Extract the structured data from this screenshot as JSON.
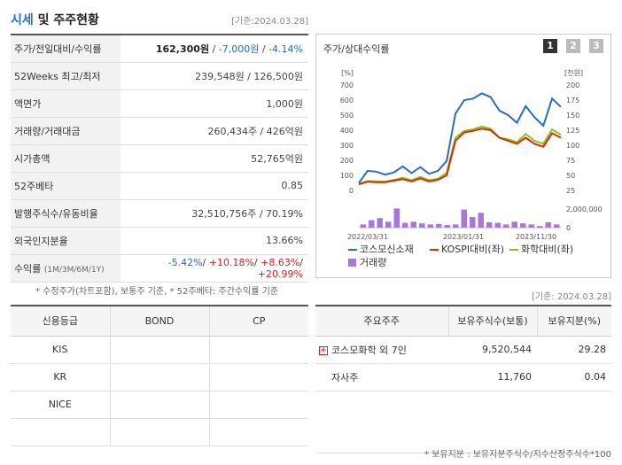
{
  "header": {
    "title_a": "시세",
    "title_b": " 및 주주현황",
    "date": "[기준:2024.03.28]"
  },
  "price_rows": [
    {
      "label": "주가/전일대비/수익률",
      "v1": "162,300원",
      "sep1": " / ",
      "v2": "-7,000원",
      "sep2": " / ",
      "v3": "-4.14%"
    },
    {
      "label": "52Weeks 최고/최저",
      "value": "239,548원 / 126,500원"
    },
    {
      "label": "액면가",
      "value": "1,000원"
    },
    {
      "label": "거래량/거래대금",
      "value": "260,434주 / 426억원"
    },
    {
      "label": "시가총액",
      "value": "52,765억원"
    },
    {
      "label": "52주베타",
      "value": "0.85"
    },
    {
      "label": "발행주식수/유동비율",
      "value": "32,510,756주 / 70.19%"
    },
    {
      "label": "외국인지분율",
      "value": "13.66%"
    },
    {
      "label": "수익률",
      "sub": "(1M/3M/6M/1Y)",
      "r1": "-5.42%",
      "r2": "+10.18%",
      "r3": "+8.63%",
      "r4": "+20.99%"
    }
  ],
  "note1": "* 수정주가(차트포함), 보통주 기준, * 52주베타: 주간수익률 기준",
  "chart_panel": {
    "title": "주가/상대수익률",
    "pages": [
      "1",
      "2",
      "3"
    ]
  },
  "chart_data": {
    "type": "line",
    "x_ticks": [
      "2022/03/31",
      "2023/01/31",
      "2023/11/30"
    ],
    "y_left": {
      "unit": "[%]",
      "ticks": [
        "700",
        "600",
        "500",
        "400",
        "300",
        "200",
        "100",
        "0"
      ],
      "range": [
        0,
        700
      ]
    },
    "y_right": {
      "unit": "[천원]",
      "ticks": [
        "200",
        "175",
        "150",
        "125",
        "100",
        "75",
        "50",
        "25"
      ],
      "range": [
        25,
        200
      ]
    },
    "y_volume": {
      "ticks": [
        "2,000,000",
        "0"
      ],
      "range": [
        0,
        2000000
      ]
    },
    "series": [
      {
        "name": "코스모신소재",
        "color": "#2a6ac8",
        "values": [
          50,
          130,
          125,
          105,
          120,
          160,
          115,
          155,
          110,
          130,
          195,
          510,
          600,
          610,
          645,
          620,
          530,
          500,
          450,
          560,
          485,
          430,
          610,
          555
        ]
      },
      {
        "name": "KOSPI대비(좌)",
        "color": "#cc3300",
        "values": [
          40,
          58,
          55,
          55,
          65,
          75,
          60,
          80,
          60,
          70,
          100,
          330,
          385,
          395,
          410,
          400,
          350,
          330,
          310,
          350,
          310,
          290,
          380,
          350
        ]
      },
      {
        "name": "화학대비(좌)",
        "color": "#99bb22",
        "values": [
          45,
          62,
          60,
          58,
          70,
          85,
          68,
          90,
          68,
          78,
          115,
          350,
          395,
          405,
          425,
          410,
          350,
          340,
          320,
          375,
          330,
          310,
          405,
          370
        ]
      },
      {
        "name": "거래량",
        "color": "#a678d8",
        "values": [
          300000,
          700000,
          900000,
          550000,
          1800000,
          450000,
          550000,
          400000,
          300000,
          350000,
          250000,
          300000,
          1700000,
          1000000,
          1400000,
          500000,
          450000,
          300000,
          550000,
          400000,
          300000,
          150000,
          500000,
          300000
        ]
      }
    ]
  },
  "date2": "[기준: 2024.03.28]",
  "credit": {
    "headers": [
      "신용등급",
      "BOND",
      "CP"
    ],
    "rows": [
      [
        "KIS",
        "",
        ""
      ],
      [
        "KR",
        "",
        ""
      ],
      [
        "NICE",
        "",
        ""
      ],
      [
        "",
        "",
        ""
      ]
    ]
  },
  "holders": {
    "headers": [
      "주요주주",
      "보유주식수(보통)",
      "보유지분(%)"
    ],
    "rows": [
      {
        "name": "코스모화학 외 7인",
        "shares": "9,520,544",
        "pct": "29.28"
      },
      {
        "name": "자사주",
        "shares": "11,760",
        "pct": "0.04"
      },
      {
        "name": "",
        "shares": "",
        "pct": ""
      }
    ]
  },
  "note2": "* 보유지분 : 보유지분주식수/지수산정주식수*100"
}
